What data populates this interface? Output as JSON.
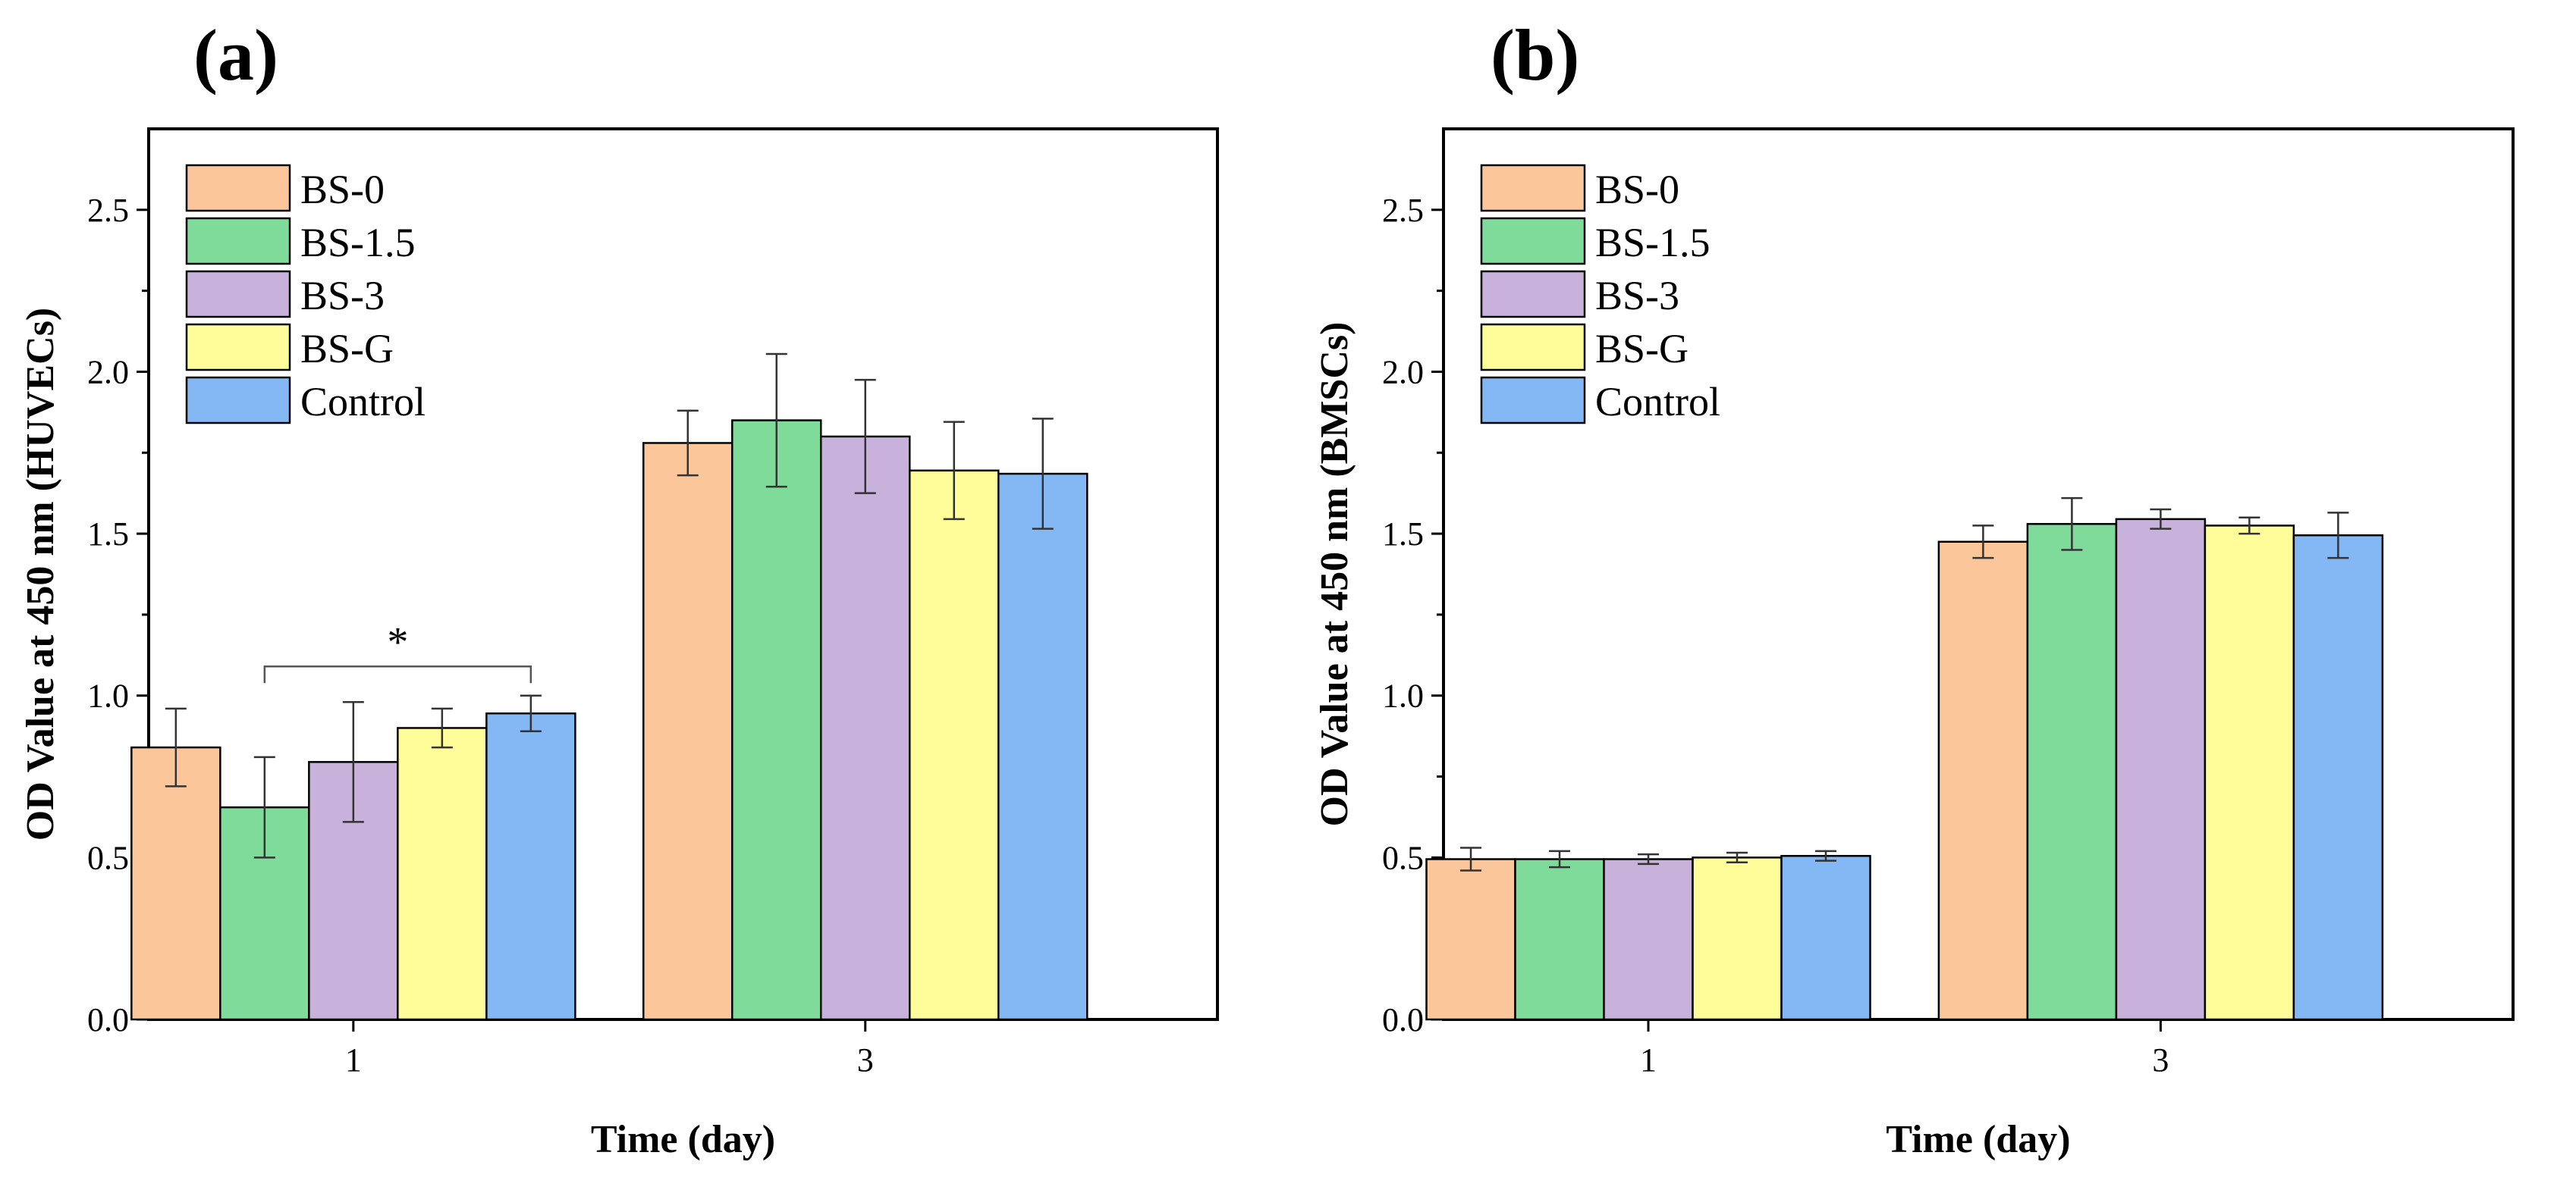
{
  "colors": {
    "BS-0": "#FBC79A",
    "BS-1.5": "#7EDB9A",
    "BS-3": "#C8B2DB",
    "BS-G": "#FEFD9A",
    "Control": "#84B8F5",
    "axis": "#000000",
    "errorbar": "#333333"
  },
  "chart_data": [
    {
      "panel_label": "(a)",
      "type": "bar",
      "categories": [
        "1",
        "3"
      ],
      "xlabel": "Time (day)",
      "ylabel": "OD Value at 450 nm (HUVECs)",
      "ylim": [
        0,
        2.75
      ],
      "yticks": [
        "0.0",
        "0.5",
        "1.0",
        "1.5",
        "2.0",
        "2.5"
      ],
      "legend_position": "top-left",
      "series": [
        {
          "name": "BS-0",
          "values": [
            0.84,
            1.78
          ],
          "errors": [
            0.12,
            0.1
          ]
        },
        {
          "name": "BS-1.5",
          "values": [
            0.655,
            1.85
          ],
          "errors": [
            0.155,
            0.205
          ]
        },
        {
          "name": "BS-3",
          "values": [
            0.795,
            1.8
          ],
          "errors": [
            0.185,
            0.175
          ]
        },
        {
          "name": "BS-G",
          "values": [
            0.9,
            1.695
          ],
          "errors": [
            0.06,
            0.15
          ]
        },
        {
          "name": "Control",
          "values": [
            0.945,
            1.685
          ],
          "errors": [
            0.055,
            0.17
          ]
        }
      ],
      "annotations": [
        {
          "text": "*",
          "category": "1",
          "from_series": "BS-1.5",
          "to_series": "Control",
          "y": 1.09
        }
      ]
    },
    {
      "panel_label": "(b)",
      "type": "bar",
      "categories": [
        "1",
        "3"
      ],
      "xlabel": "Time (day)",
      "ylabel": "OD Value at 450 nm (BMSCs)",
      "ylim": [
        0,
        2.75
      ],
      "yticks": [
        "0.0",
        "0.5",
        "1.0",
        "1.5",
        "2.0",
        "2.5"
      ],
      "legend_position": "top-left",
      "series": [
        {
          "name": "BS-0",
          "values": [
            0.495,
            1.475
          ],
          "errors": [
            0.035,
            0.05
          ]
        },
        {
          "name": "BS-1.5",
          "values": [
            0.495,
            1.53
          ],
          "errors": [
            0.025,
            0.08
          ]
        },
        {
          "name": "BS-3",
          "values": [
            0.495,
            1.545
          ],
          "errors": [
            0.015,
            0.03
          ]
        },
        {
          "name": "BS-G",
          "values": [
            0.5,
            1.525
          ],
          "errors": [
            0.015,
            0.025
          ]
        },
        {
          "name": "Control",
          "values": [
            0.505,
            1.495
          ],
          "errors": [
            0.015,
            0.07
          ]
        }
      ],
      "annotations": []
    }
  ]
}
